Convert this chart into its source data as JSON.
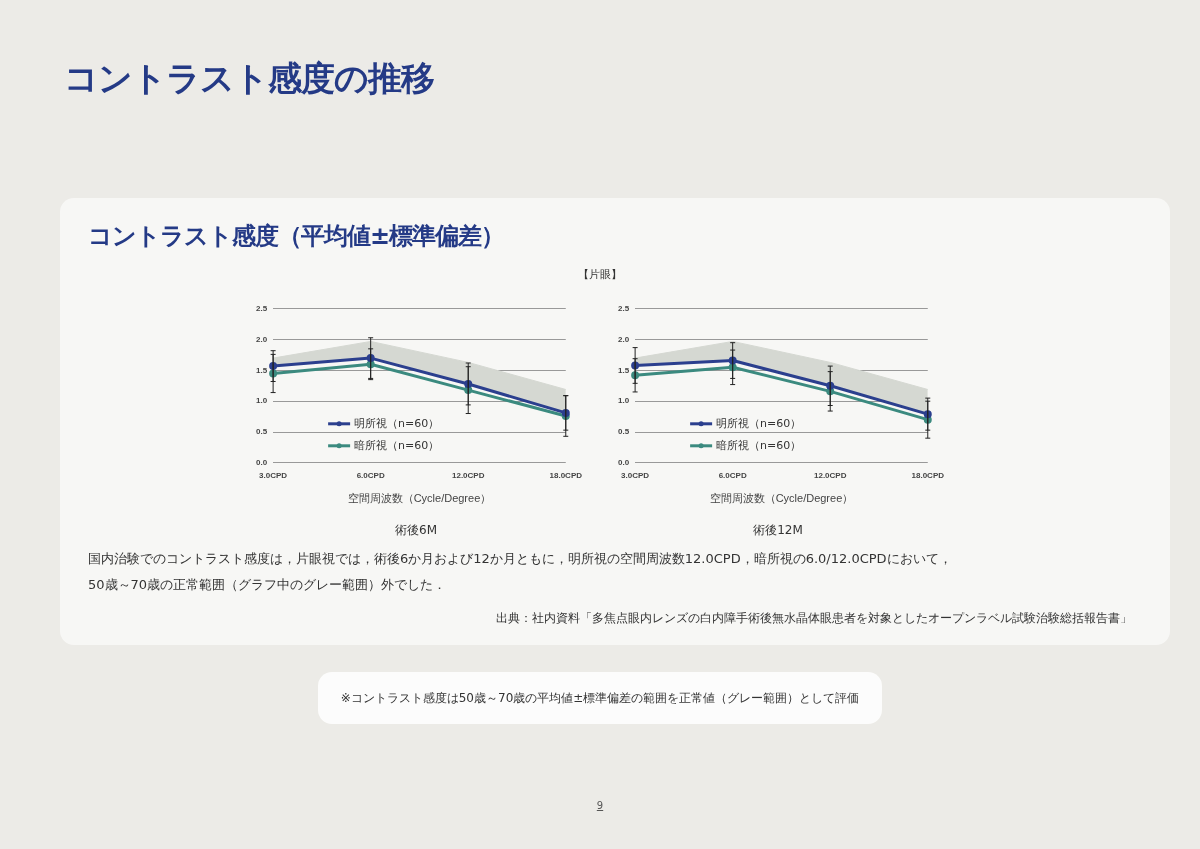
{
  "chart_data": [
    {
      "type": "other",
      "title": "コントラスト感度の推移",
      "subtitle": "コントラスト感度（平均値±標準偏差）",
      "annotations": [
        "【片眼】",
        "国内治験でのコントラスト感度は，片眼視では，術後6か月および12か月ともに，明所視の空間周波数12.0CPD，暗所視の6.0/12.0CPDにおいて，\n50歳～70歳の正常範囲（グラフ中のグレー範囲）外でした．",
        "出典：社内資料「多焦点眼内レンズの白内障手術後無水晶体眼患者を対象としたオープンラベル試験治験総括報告書」",
        "※コントラスト感度は50歳～70歳の平均値±標準偏差の範囲を正常値（グレー範囲）として評価",
        "9"
      ]
    },
    {
      "type": "line",
      "title": "術後6M",
      "xlabel": "空間周波数（Cycle/Degree）",
      "categories": [
        "3.0CPD",
        "6.0CPD",
        "12.0CPD",
        "18.0CPD"
      ],
      "ylim": [
        0,
        2.5
      ],
      "yticks": [
        "0.0",
        0.5,
        "1.0",
        1.5,
        "2.0",
        2.5
      ],
      "grid": "y",
      "legend": "bottom left",
      "line_style": "solid",
      "series": [
        {
          "type": "area",
          "color": "#d5d8d2",
          "values": [
            1.7,
            1.97,
            1.63,
            1.19
          ]
        },
        {
          "name": "明所視（n=60）",
          "color": "#2b3f8e",
          "marker": "circle",
          "values": [
            1.57,
            1.7,
            1.28,
            0.81
          ],
          "errors": [
            0.25,
            0.33,
            0.34,
            0.28
          ]
        },
        {
          "name": "暗所視（n=60）",
          "color": "#3b8a7f",
          "marker": "circle",
          "values": [
            1.45,
            1.6,
            1.18,
            0.76
          ],
          "errors": [
            0.31,
            0.25,
            0.38,
            0.33
          ]
        }
      ]
    },
    {
      "type": "line",
      "title": "術後12M",
      "xlabel": "空間周波数（Cycle/Degree）",
      "categories": [
        "3.0CPD",
        "6.0CPD",
        "12.0CPD",
        "18.0CPD"
      ],
      "ylim": [
        0,
        2.5
      ],
      "yticks": [
        "0.0",
        0.5,
        "1.0",
        1.5,
        "2.0",
        2.5
      ],
      "grid": "y",
      "legend": "bottom left",
      "line_style": "solid",
      "series": [
        {
          "type": "area",
          "color": "#d5d8d2",
          "values": [
            1.7,
            1.97,
            1.63,
            1.19
          ]
        },
        {
          "name": "明所視（n=60）",
          "color": "#2b3f8e",
          "marker": "circle",
          "values": [
            1.58,
            1.66,
            1.25,
            0.79
          ],
          "errors": [
            0.29,
            0.29,
            0.32,
            0.26
          ]
        },
        {
          "name": "暗所視（n=60）",
          "color": "#3b8a7f",
          "marker": "circle",
          "values": [
            1.42,
            1.55,
            1.16,
            0.7
          ],
          "errors": [
            0.27,
            0.28,
            0.32,
            0.3
          ]
        }
      ]
    }
  ]
}
